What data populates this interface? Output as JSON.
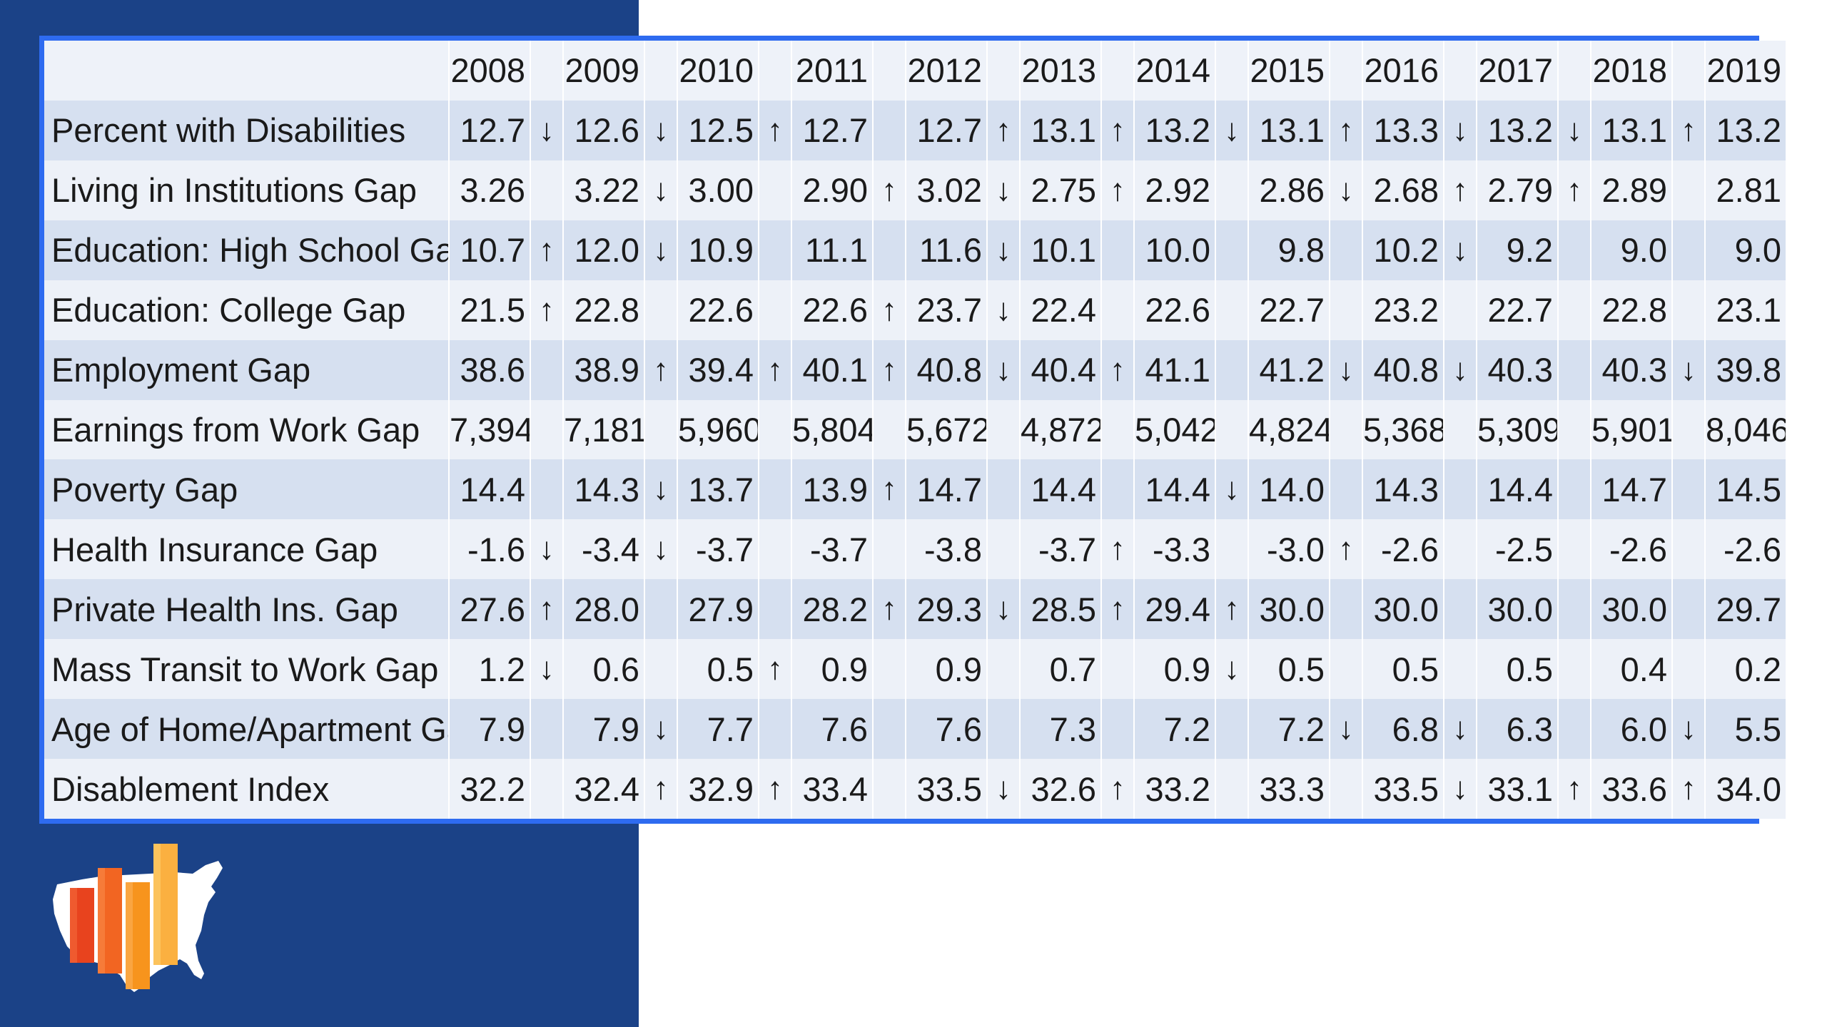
{
  "colors": {
    "panel": "#1b4287",
    "frame_border": "#2e6bf0",
    "row_shaded": "#d6e0f0",
    "row_light": "#edf1f8",
    "logo_orange": "#f7941d",
    "logo_red": "#e8431e"
  },
  "icons": {
    "up": "up-arrow-icon",
    "down": "down-arrow-icon",
    "logo": "us-map-bar-chart-logo"
  },
  "chart_data": {
    "type": "table",
    "columns": [
      "2008",
      "2009",
      "2010",
      "2011",
      "2012",
      "2013",
      "2014",
      "2015",
      "2016",
      "2017",
      "2018",
      "2019"
    ],
    "rows": [
      {
        "label": "Percent with Disabilities",
        "values": [
          "12.7",
          "12.6",
          "12.5",
          "12.7",
          "12.7",
          "13.1",
          "13.2",
          "13.1",
          "13.3",
          "13.2",
          "13.1",
          "13.2"
        ],
        "trends": [
          "down",
          "down",
          "up",
          "",
          "up",
          "up",
          "down",
          "up",
          "down",
          "down",
          "up"
        ]
      },
      {
        "label": "Living in Institutions Gap",
        "values": [
          "3.26",
          "3.22",
          "3.00",
          "2.90",
          "3.02",
          "2.75",
          "2.92",
          "2.86",
          "2.68",
          "2.79",
          "2.89",
          "2.81"
        ],
        "trends": [
          "",
          "down",
          "",
          "up",
          "down",
          "up",
          "",
          "down",
          "up",
          "up",
          ""
        ]
      },
      {
        "label": "Education: High School Gap",
        "values": [
          "10.7",
          "12.0",
          "10.9",
          "11.1",
          "11.6",
          "10.1",
          "10.0",
          "9.8",
          "10.2",
          "9.2",
          "9.0",
          "9.0"
        ],
        "trends": [
          "up",
          "down",
          "",
          "",
          "down",
          "",
          "",
          "",
          "down",
          "",
          ""
        ]
      },
      {
        "label": "Education: College Gap",
        "values": [
          "21.5",
          "22.8",
          "22.6",
          "22.6",
          "23.7",
          "22.4",
          "22.6",
          "22.7",
          "23.2",
          "22.7",
          "22.8",
          "23.1"
        ],
        "trends": [
          "up",
          "",
          "",
          "up",
          "down",
          "",
          "",
          "",
          "",
          "",
          ""
        ]
      },
      {
        "label": "Employment Gap",
        "values": [
          "38.6",
          "38.9",
          "39.4",
          "40.1",
          "40.8",
          "40.4",
          "41.1",
          "41.2",
          "40.8",
          "40.3",
          "40.3",
          "39.8"
        ],
        "trends": [
          "",
          "up",
          "up",
          "up",
          "down",
          "up",
          "",
          "down",
          "down",
          "",
          "down"
        ]
      },
      {
        "label": "Earnings from Work Gap",
        "values": [
          "7,394",
          "7,181",
          "5,960",
          "5,804",
          "5,672",
          "4,872",
          "5,042",
          "4,824",
          "5,368",
          "5,309",
          "5,901",
          "8,046"
        ],
        "trends": [
          "",
          "",
          "",
          "",
          "",
          "",
          "",
          "",
          "",
          "",
          ""
        ]
      },
      {
        "label": "Poverty Gap",
        "values": [
          "14.4",
          "14.3",
          "13.7",
          "13.9",
          "14.7",
          "14.4",
          "14.4",
          "14.0",
          "14.3",
          "14.4",
          "14.7",
          "14.5"
        ],
        "trends": [
          "",
          "down",
          "",
          "up",
          "",
          "",
          "down",
          "",
          "",
          "",
          ""
        ]
      },
      {
        "label": "Health Insurance Gap",
        "values": [
          "-1.6",
          "-3.4",
          "-3.7",
          "-3.7",
          "-3.8",
          "-3.7",
          "-3.3",
          "-3.0",
          "-2.6",
          "-2.5",
          "-2.6",
          "-2.6"
        ],
        "trends": [
          "down",
          "down",
          "",
          "",
          "",
          "up",
          "",
          "up",
          "",
          "",
          ""
        ]
      },
      {
        "label": "Private Health Ins. Gap",
        "values": [
          "27.6",
          "28.0",
          "27.9",
          "28.2",
          "29.3",
          "28.5",
          "29.4",
          "30.0",
          "30.0",
          "30.0",
          "30.0",
          "29.7"
        ],
        "trends": [
          "up",
          "",
          "",
          "up",
          "down",
          "up",
          "up",
          "",
          "",
          "",
          ""
        ]
      },
      {
        "label": "Mass Transit to Work Gap",
        "values": [
          "1.2",
          "0.6",
          "0.5",
          "0.9",
          "0.9",
          "0.7",
          "0.9",
          "0.5",
          "0.5",
          "0.5",
          "0.4",
          "0.2"
        ],
        "trends": [
          "down",
          "",
          "up",
          "",
          "",
          "",
          "down",
          "",
          "",
          "",
          ""
        ]
      },
      {
        "label": "Age of Home/Apartment Gap",
        "values": [
          "7.9",
          "7.9",
          "7.7",
          "7.6",
          "7.6",
          "7.3",
          "7.2",
          "7.2",
          "6.8",
          "6.3",
          "6.0",
          "5.5"
        ],
        "trends": [
          "",
          "down",
          "",
          "",
          "",
          "",
          "",
          "down",
          "down",
          "",
          "down"
        ]
      },
      {
        "label": "Disablement Index",
        "values": [
          "32.2",
          "32.4",
          "32.9",
          "33.4",
          "33.5",
          "32.6",
          "33.2",
          "33.3",
          "33.5",
          "33.1",
          "33.6",
          "34.0"
        ],
        "trends": [
          "",
          "up",
          "up",
          "",
          "down",
          "up",
          "",
          "",
          "down",
          "up",
          "up"
        ]
      }
    ]
  }
}
